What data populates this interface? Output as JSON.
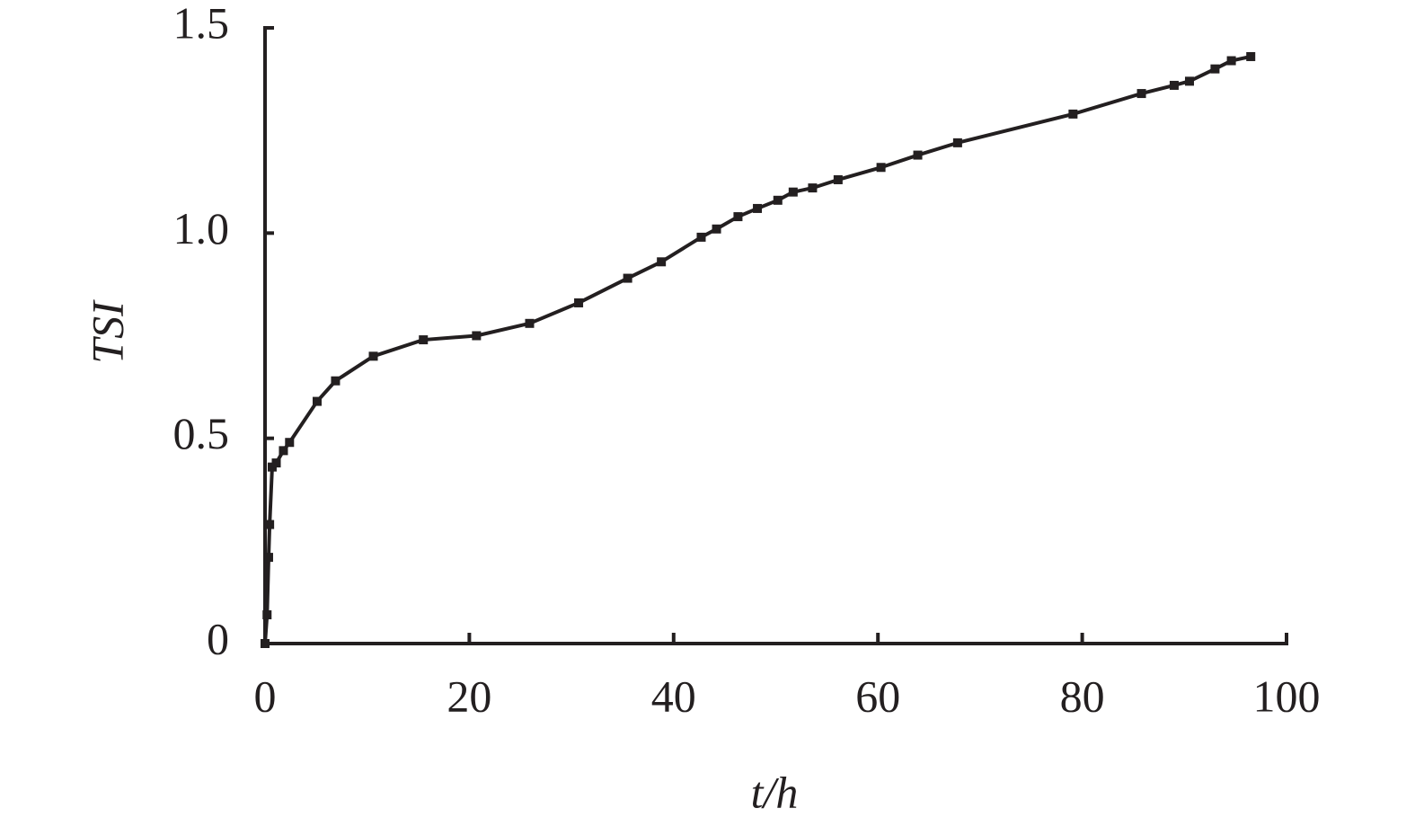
{
  "chart_data": {
    "type": "line",
    "x_label": "t/h",
    "y_label": "TSI",
    "xlim": [
      0,
      100
    ],
    "xticks": [
      0,
      20,
      40,
      60,
      80,
      100
    ],
    "ylim": [
      0,
      1.5
    ],
    "yticks": [
      0,
      0.5,
      {
        "value": 1,
        "label": "1.0"
      },
      1.5
    ],
    "series": [
      {
        "color": "#231f20",
        "x": [
          0,
          0.2,
          0.35,
          0.45,
          0.7,
          1.1,
          1.8,
          2.4,
          5.1,
          6.9,
          10.6,
          15.5,
          20.7,
          25.9,
          30.7,
          35.5,
          38.8,
          42.7,
          44.2,
          46.3,
          48.2,
          50.2,
          51.7,
          53.6,
          56.1,
          60.3,
          63.9,
          67.8,
          79.1,
          85.8,
          89,
          90.5,
          93,
          94.6,
          96.5
        ],
        "values": [
          0,
          0.07,
          0.21,
          0.29,
          0.43,
          0.44,
          0.47,
          0.49,
          0.59,
          0.64,
          0.7,
          0.74,
          0.75,
          0.78,
          0.83,
          0.89,
          0.93,
          0.99,
          1.01,
          1.04,
          1.06,
          1.08,
          1.1,
          1.11,
          1.13,
          1.16,
          1.19,
          1.22,
          1.29,
          1.34,
          1.36,
          1.37,
          1.4,
          1.42,
          1.43
        ]
      }
    ]
  }
}
